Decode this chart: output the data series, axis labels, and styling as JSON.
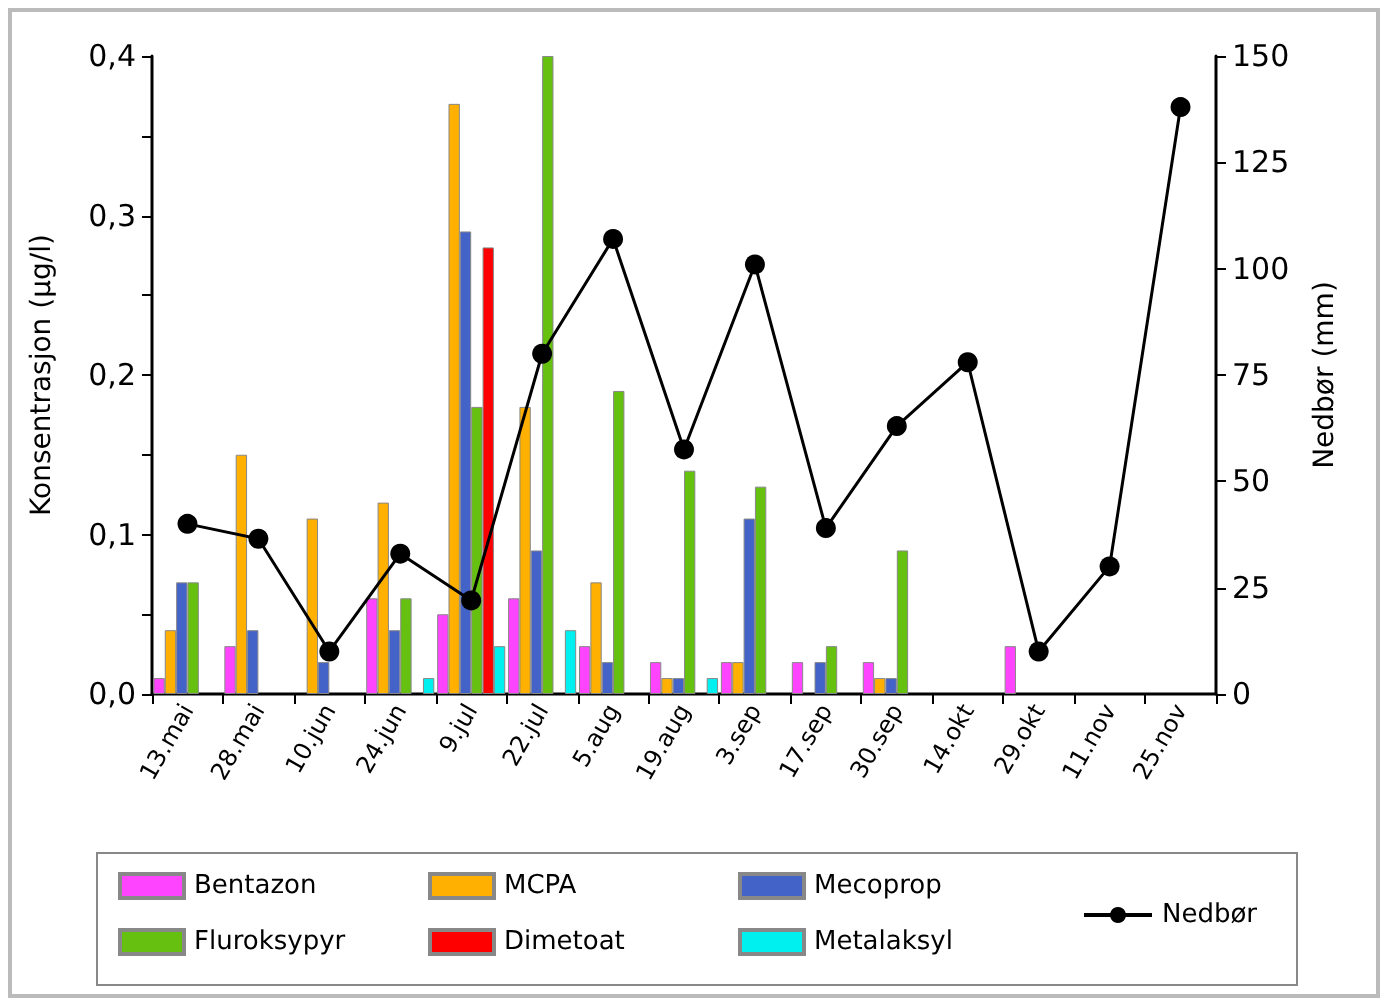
{
  "chart_data": {
    "type": "bar",
    "categories": [
      "13.mai",
      "28.mai",
      "10.jun",
      "24.jun",
      "9.jul",
      "22.jul",
      "5.aug",
      "19.aug",
      "3.sep",
      "17.sep",
      "30.sep",
      "14.okt",
      "29.okt",
      "11.nov",
      "25.nov"
    ],
    "series": [
      {
        "name": "Bentazon",
        "color": "#ff44ff",
        "values": [
          0.01,
          0.03,
          null,
          0.06,
          0.05,
          0.06,
          0.03,
          0.02,
          0.02,
          0.02,
          0.02,
          null,
          0.03,
          null,
          null
        ]
      },
      {
        "name": "MCPA",
        "color": "#ffb000",
        "values": [
          0.04,
          0.15,
          0.11,
          0.12,
          0.37,
          0.18,
          0.07,
          0.01,
          0.02,
          null,
          0.01,
          null,
          null,
          null,
          null
        ]
      },
      {
        "name": "Mecoprop",
        "color": "#4463c8",
        "values": [
          0.07,
          0.04,
          0.02,
          0.04,
          0.29,
          0.09,
          0.02,
          0.01,
          0.11,
          0.02,
          0.01,
          null,
          null,
          null,
          null
        ]
      },
      {
        "name": "Fluroksypyr",
        "color": "#66c010",
        "values": [
          0.07,
          null,
          null,
          0.06,
          0.18,
          0.4,
          0.19,
          0.14,
          0.13,
          0.03,
          0.09,
          null,
          null,
          null,
          null
        ]
      },
      {
        "name": "Dimetoat",
        "color": "#ff0000",
        "values": [
          null,
          null,
          null,
          null,
          0.28,
          null,
          null,
          null,
          null,
          null,
          null,
          null,
          null,
          null,
          null
        ]
      },
      {
        "name": "Metalaksyl",
        "color": "#00f0f0",
        "values": [
          null,
          null,
          null,
          0.01,
          0.03,
          0.04,
          null,
          0.01,
          null,
          null,
          null,
          null,
          null,
          null,
          null
        ]
      },
      {
        "name": "Nedbør",
        "type": "line",
        "axis": "y2",
        "color": "#000000",
        "marker": "circle",
        "values": [
          40,
          36.5,
          10,
          33,
          22,
          80,
          107,
          57.5,
          101,
          39,
          63,
          78,
          10,
          30,
          138
        ]
      }
    ],
    "ylabel": "Konsentrasjon (µg/l)",
    "y2label": "Nedbør (mm)",
    "ylim": [
      0,
      0.4
    ],
    "yticks": [
      {
        "value": 0,
        "label": "0,0"
      },
      {
        "value": 0.05,
        "label": null
      },
      {
        "value": 0.1,
        "label": "0,1"
      },
      {
        "value": 0.15,
        "label": null
      },
      {
        "value": 0.2,
        "label": "0,2"
      },
      {
        "value": 0.25,
        "label": null
      },
      {
        "value": 0.3,
        "label": "0,3"
      },
      {
        "value": 0.35,
        "label": null
      },
      {
        "value": 0.4,
        "label": "0,4"
      }
    ],
    "y2lim": [
      0,
      150
    ],
    "y2ticks": [
      0,
      25,
      50,
      75,
      100,
      125,
      150
    ],
    "grid": false,
    "legend": "bottom"
  }
}
